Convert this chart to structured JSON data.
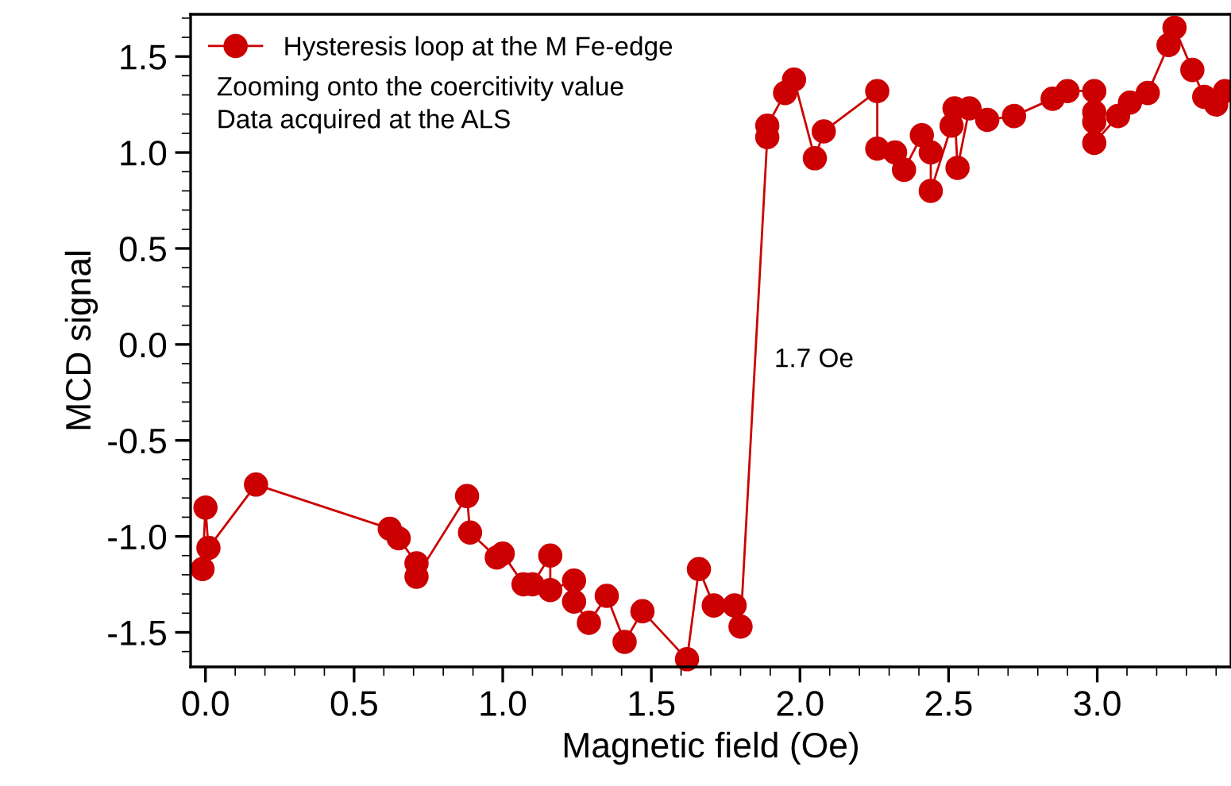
{
  "chart_data": {
    "type": "line",
    "xlabel": "Magnetic field (Oe)",
    "ylabel": "MCD signal",
    "annotations": [
      "Zooming onto the coercitivity value",
      "Data acquired at the ALS",
      "1.7 Oe"
    ],
    "series": [
      {
        "name": "Hysteresis loop at the M Fe-edge",
        "color": "#cc0000",
        "x": [
          -0.01,
          0.0,
          0.01,
          0.17,
          0.62,
          0.65,
          0.71,
          0.71,
          0.88,
          0.89,
          0.98,
          1.0,
          1.07,
          1.1,
          1.16,
          1.16,
          1.24,
          1.24,
          1.29,
          1.35,
          1.41,
          1.47,
          1.62,
          1.66,
          1.71,
          1.78,
          1.8,
          1.89,
          1.89,
          1.95,
          1.98,
          2.05,
          2.08,
          2.26,
          2.26,
          2.32,
          2.35,
          2.41,
          2.44,
          2.44,
          2.51,
          2.52,
          2.53,
          2.57,
          2.63,
          2.72,
          2.85,
          2.9,
          2.99,
          2.99,
          2.99,
          2.99,
          3.07,
          3.11,
          3.17,
          3.24,
          3.26,
          3.32,
          3.36,
          3.4,
          3.43
        ],
        "values": [
          -1.17,
          -0.85,
          -1.06,
          -0.73,
          -0.96,
          -1.01,
          -1.14,
          -1.21,
          -0.79,
          -0.98,
          -1.11,
          -1.09,
          -1.25,
          -1.25,
          -1.1,
          -1.28,
          -1.23,
          -1.34,
          -1.45,
          -1.31,
          -1.55,
          -1.39,
          -1.64,
          -1.17,
          -1.36,
          -1.36,
          -1.47,
          1.08,
          1.14,
          1.31,
          1.38,
          0.97,
          1.11,
          1.32,
          1.02,
          1.0,
          0.91,
          1.09,
          1.0,
          0.8,
          1.14,
          1.23,
          0.92,
          1.23,
          1.17,
          1.19,
          1.28,
          1.32,
          1.32,
          1.21,
          1.16,
          1.05,
          1.19,
          1.26,
          1.31,
          1.56,
          1.65,
          1.43,
          1.29,
          1.25,
          1.32
        ]
      }
    ],
    "xlim": [
      -0.05,
      3.45
    ],
    "ylim": [
      -1.68,
      1.72
    ],
    "xticks": [
      {
        "value": 0,
        "label": "0.0"
      },
      0.5,
      {
        "value": 1,
        "label": "1.0"
      },
      1.5,
      {
        "value": 2,
        "label": "2.0"
      },
      2.5,
      {
        "value": 3,
        "label": "3.0"
      }
    ],
    "yticks": [
      -1.5,
      {
        "value": -1,
        "label": "-1.0"
      },
      -0.5,
      {
        "value": 0,
        "label": "0.0"
      },
      0.5,
      {
        "value": 1,
        "label": "1.0"
      },
      1.5
    ],
    "marker": "circle",
    "line_style": "solid",
    "legend": "top left",
    "grid": false
  }
}
